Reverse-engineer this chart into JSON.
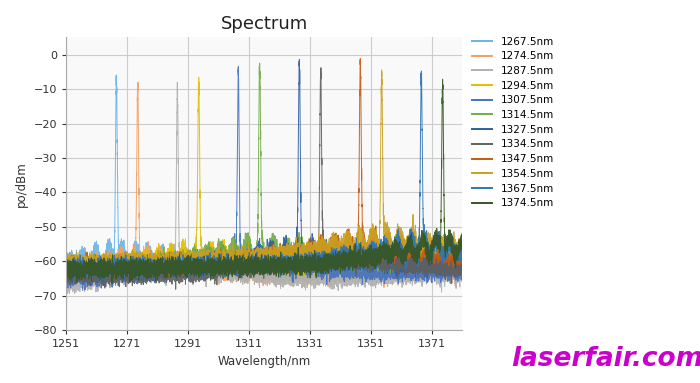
{
  "title": "Spectrum",
  "xlabel": "Wavelength/nm",
  "ylabel": "po/dBm",
  "xlim": [
    1251,
    1381
  ],
  "ylim": [
    -80,
    5
  ],
  "yticks": [
    0,
    -10,
    -20,
    -30,
    -40,
    -50,
    -60,
    -70,
    -80
  ],
  "xticks": [
    1251,
    1271,
    1291,
    1311,
    1331,
    1351,
    1371
  ],
  "plot_bg": "#f9f9f9",
  "fig_bg": "#ffffff",
  "watermark_text": "laserfair.com",
  "watermark_color": "#cc00cc",
  "channels": [
    {
      "wavelength": 1267.5,
      "color": "#6ab4e8",
      "peak_val": -10.0,
      "noise_floor": -63.5,
      "noise_slope": 3.0
    },
    {
      "wavelength": 1274.5,
      "color": "#f4a060",
      "peak_val": -13.0,
      "noise_floor": -65.0,
      "noise_slope": 2.5
    },
    {
      "wavelength": 1287.5,
      "color": "#b0b0b0",
      "peak_val": -13.0,
      "noise_floor": -67.0,
      "noise_slope": 3.5
    },
    {
      "wavelength": 1294.5,
      "color": "#dfc000",
      "peak_val": -14.0,
      "noise_floor": -63.5,
      "noise_slope": 3.0
    },
    {
      "wavelength": 1307.5,
      "color": "#4472c4",
      "peak_val": -10.0,
      "noise_floor": -64.5,
      "noise_slope": 2.0
    },
    {
      "wavelength": 1314.5,
      "color": "#70ad47",
      "peak_val": -10.5,
      "noise_floor": -62.0,
      "noise_slope": 2.5
    },
    {
      "wavelength": 1327.5,
      "color": "#2e5fa3",
      "peak_val": -8.5,
      "noise_floor": -63.0,
      "noise_slope": 2.0
    },
    {
      "wavelength": 1334.5,
      "color": "#606060",
      "peak_val": -10.5,
      "noise_floor": -64.0,
      "noise_slope": 2.0
    },
    {
      "wavelength": 1347.5,
      "color": "#c55a11",
      "peak_val": -10.0,
      "noise_floor": -61.5,
      "noise_slope": 2.5
    },
    {
      "wavelength": 1354.5,
      "color": "#c9a020",
      "peak_val": -9.0,
      "noise_floor": -60.5,
      "noise_slope": 3.0
    },
    {
      "wavelength": 1367.5,
      "color": "#2e75b6",
      "peak_val": -10.5,
      "noise_floor": -62.0,
      "noise_slope": 2.0
    },
    {
      "wavelength": 1374.5,
      "color": "#375623",
      "peak_val": -10.5,
      "noise_floor": -62.5,
      "noise_slope": 2.5
    }
  ]
}
